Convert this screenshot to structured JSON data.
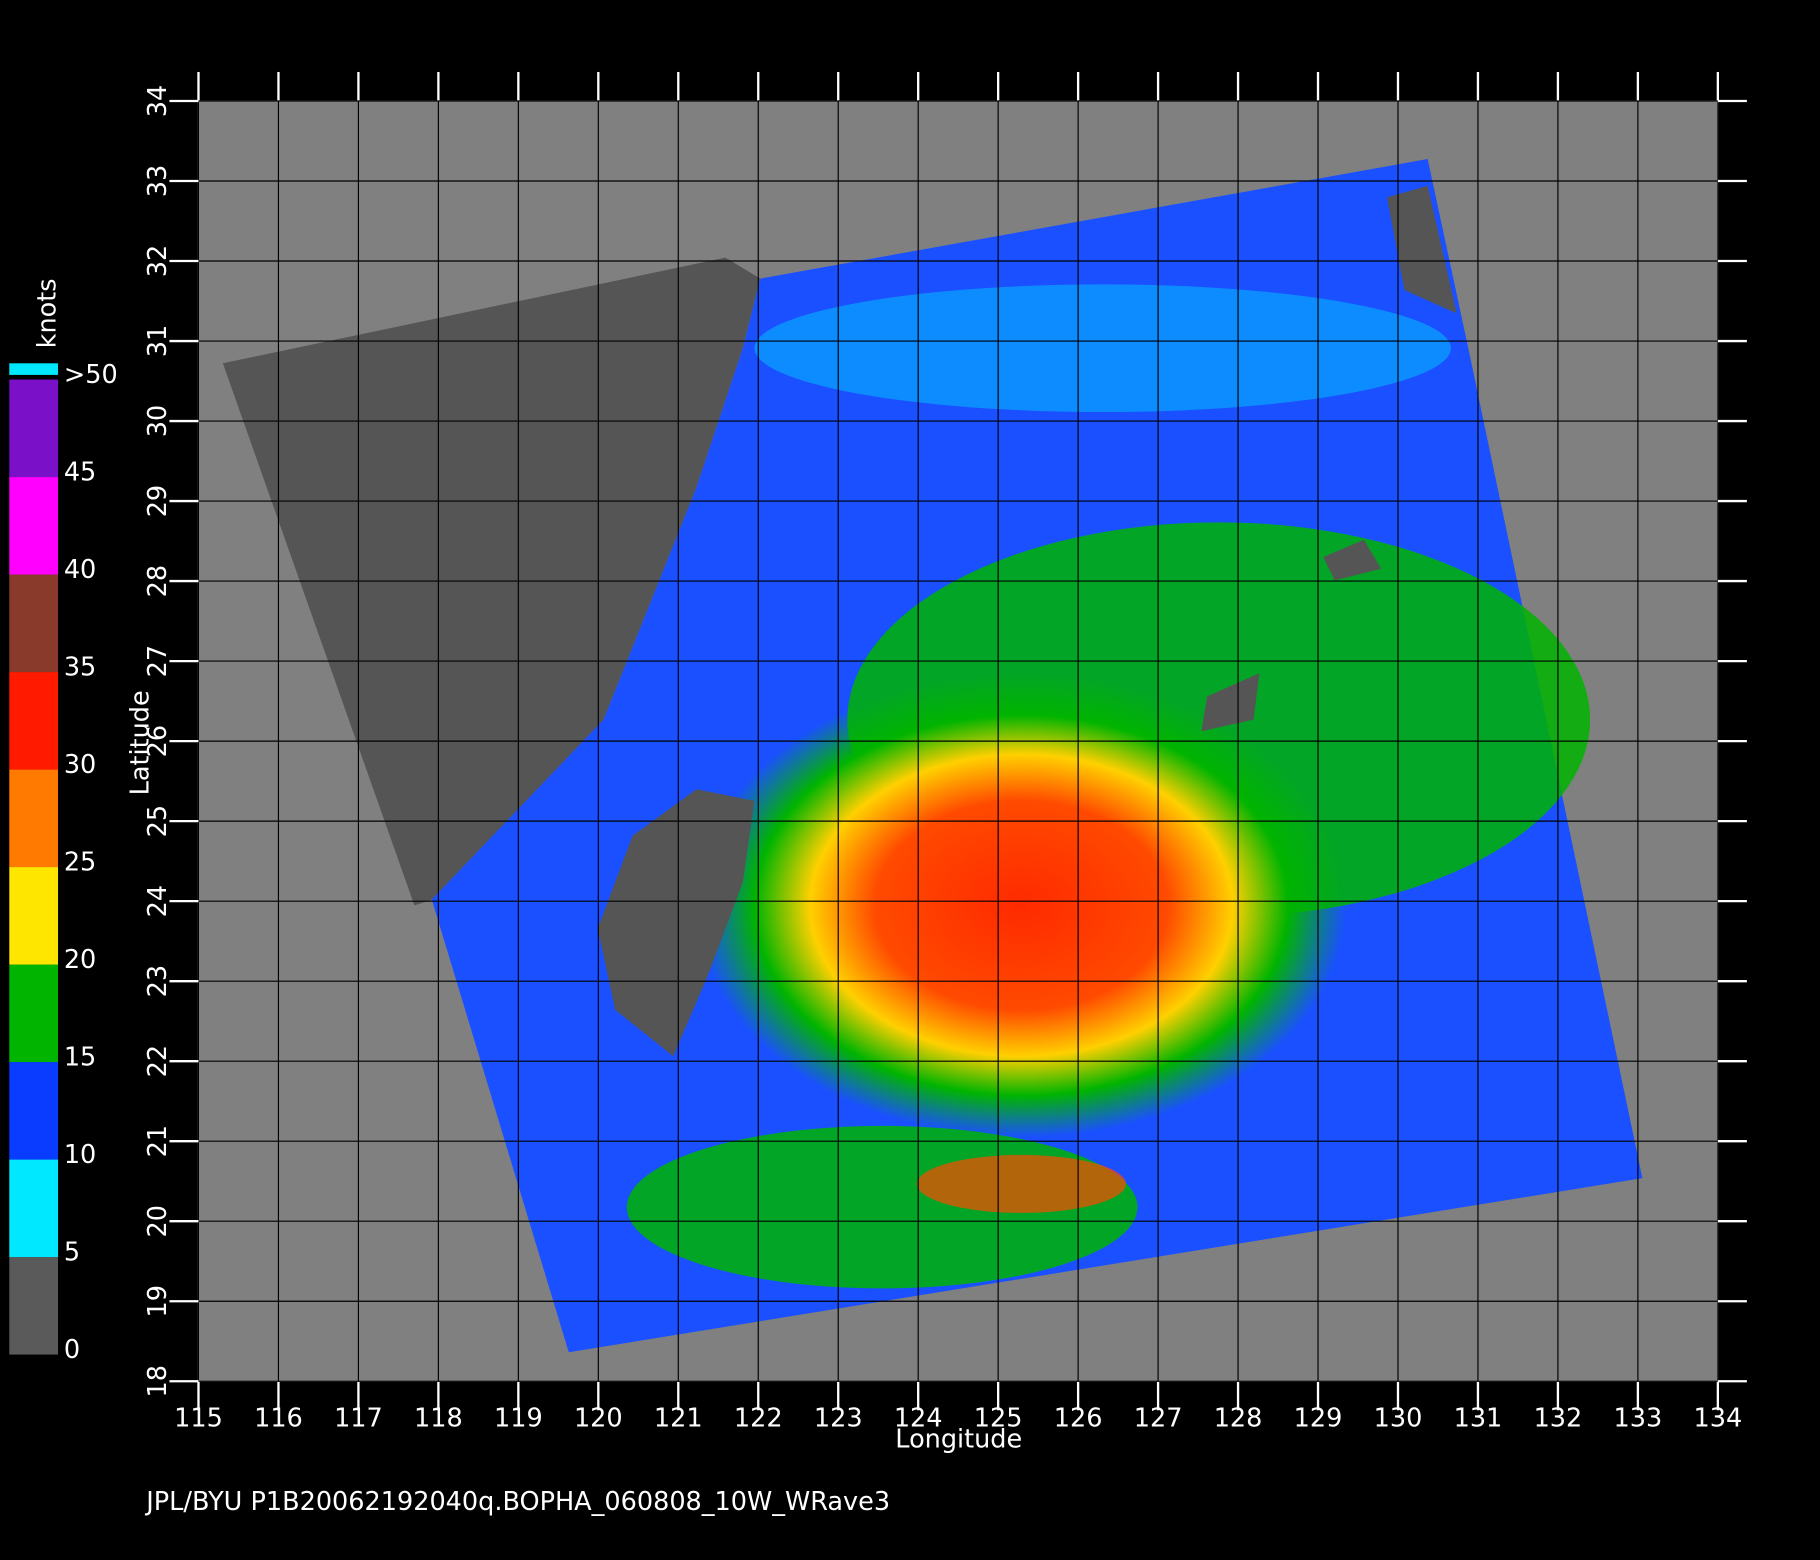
{
  "caption": "JPL/BYU  P1B20062192040q.BOPHA_060808_10W_WRave3",
  "chart_data": {
    "type": "map",
    "x_label": "Longitude",
    "y_label": "Latitude",
    "xlim": [
      115,
      134
    ],
    "ylim": [
      18,
      34
    ],
    "xticks": [
      115,
      116,
      117,
      118,
      119,
      120,
      121,
      122,
      123,
      124,
      125,
      126,
      127,
      128,
      129,
      130,
      131,
      132,
      133,
      134
    ],
    "yticks": [
      18,
      19,
      20,
      21,
      22,
      23,
      24,
      25,
      26,
      27,
      28,
      29,
      30,
      31,
      32,
      33,
      34
    ],
    "grid": true,
    "colorbar": {
      "label": "knots",
      "lim": [
        0,
        50
      ],
      "ticks": [
        0,
        5,
        10,
        15,
        20,
        25,
        30,
        35,
        40,
        45,
        {
          "value": 50,
          "label": ">50"
        }
      ],
      "colors": [
        "#5a5a5a",
        "#00e8ff",
        "#0a3cff",
        "#00b400",
        "#ffe600",
        "#ff7a00",
        "#ff1a00",
        "#8a3a2a",
        "#ff00ff",
        "#7a10c8"
      ]
    }
  }
}
